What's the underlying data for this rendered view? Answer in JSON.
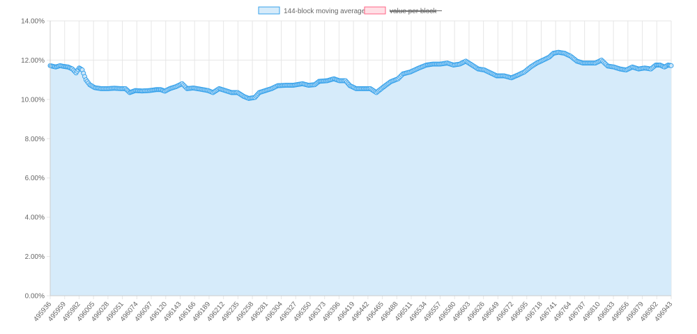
{
  "chart_data": {
    "type": "area",
    "legend": {
      "placement": "top-center",
      "items": [
        {
          "label": "144-block moving average",
          "fill": "#d6ebfa",
          "stroke": "#36a2eb",
          "hidden": false
        },
        {
          "label": "value per block",
          "fill": "#ffe0e6",
          "stroke": "#ff6384",
          "hidden": true
        }
      ]
    },
    "y_axis": {
      "min": 0,
      "max": 14,
      "step": 2,
      "tick_labels": [
        "0.00%",
        "2.00%",
        "4.00%",
        "6.00%",
        "8.00%",
        "10.00%",
        "12.00%",
        "14.00%"
      ]
    },
    "x_axis": {
      "min": 495936,
      "max": 496943,
      "tick_labels": [
        "495936",
        "495959",
        "495982",
        "496005",
        "496028",
        "496051",
        "496074",
        "496097",
        "496120",
        "496143",
        "496166",
        "496189",
        "496212",
        "496235",
        "496258",
        "496281",
        "496304",
        "496327",
        "496350",
        "496373",
        "496396",
        "496419",
        "496442",
        "496465",
        "496488",
        "496511",
        "496534",
        "496557",
        "496580",
        "496603",
        "496626",
        "496649",
        "496672",
        "496695",
        "496718",
        "496741",
        "496764",
        "496787",
        "496810",
        "496833",
        "496856",
        "496879",
        "496902",
        "496943"
      ]
    },
    "grid": true,
    "series": [
      {
        "name": "144-block moving average",
        "color": "#36a2eb",
        "fill": "#d6ebfa",
        "points": [
          [
            495936,
            11.72
          ],
          [
            495945,
            11.65
          ],
          [
            495952,
            11.72
          ],
          [
            495958,
            11.68
          ],
          [
            495965,
            11.65
          ],
          [
            495972,
            11.55
          ],
          [
            495978,
            11.35
          ],
          [
            495983,
            11.6
          ],
          [
            495988,
            11.5
          ],
          [
            495994,
            11.0
          ],
          [
            496000,
            10.75
          ],
          [
            496008,
            10.6
          ],
          [
            496018,
            10.55
          ],
          [
            496030,
            10.55
          ],
          [
            496040,
            10.57
          ],
          [
            496050,
            10.55
          ],
          [
            496058,
            10.55
          ],
          [
            496065,
            10.35
          ],
          [
            496074,
            10.45
          ],
          [
            496085,
            10.43
          ],
          [
            496097,
            10.45
          ],
          [
            496108,
            10.5
          ],
          [
            496115,
            10.5
          ],
          [
            496122,
            10.42
          ],
          [
            496130,
            10.55
          ],
          [
            496140,
            10.65
          ],
          [
            496150,
            10.8
          ],
          [
            496158,
            10.55
          ],
          [
            496168,
            10.58
          ],
          [
            496180,
            10.52
          ],
          [
            496192,
            10.45
          ],
          [
            496200,
            10.35
          ],
          [
            496210,
            10.55
          ],
          [
            496220,
            10.45
          ],
          [
            496230,
            10.35
          ],
          [
            496240,
            10.35
          ],
          [
            496250,
            10.15
          ],
          [
            496258,
            10.05
          ],
          [
            496268,
            10.1
          ],
          [
            496275,
            10.35
          ],
          [
            496285,
            10.45
          ],
          [
            496295,
            10.55
          ],
          [
            496305,
            10.7
          ],
          [
            496318,
            10.72
          ],
          [
            496330,
            10.72
          ],
          [
            496345,
            10.8
          ],
          [
            496355,
            10.72
          ],
          [
            496365,
            10.75
          ],
          [
            496372,
            10.92
          ],
          [
            496385,
            10.95
          ],
          [
            496396,
            11.05
          ],
          [
            496405,
            10.95
          ],
          [
            496415,
            10.95
          ],
          [
            496422,
            10.7
          ],
          [
            496432,
            10.55
          ],
          [
            496442,
            10.55
          ],
          [
            496455,
            10.55
          ],
          [
            496465,
            10.35
          ],
          [
            496475,
            10.6
          ],
          [
            496488,
            10.9
          ],
          [
            496500,
            11.05
          ],
          [
            496508,
            11.3
          ],
          [
            496520,
            11.4
          ],
          [
            496534,
            11.6
          ],
          [
            496546,
            11.75
          ],
          [
            496557,
            11.8
          ],
          [
            496568,
            11.8
          ],
          [
            496580,
            11.85
          ],
          [
            496590,
            11.75
          ],
          [
            496600,
            11.8
          ],
          [
            496610,
            11.95
          ],
          [
            496620,
            11.75
          ],
          [
            496630,
            11.55
          ],
          [
            496640,
            11.5
          ],
          [
            496650,
            11.35
          ],
          [
            496660,
            11.2
          ],
          [
            496672,
            11.2
          ],
          [
            496684,
            11.1
          ],
          [
            496695,
            11.25
          ],
          [
            496705,
            11.4
          ],
          [
            496715,
            11.65
          ],
          [
            496725,
            11.85
          ],
          [
            496735,
            12.0
          ],
          [
            496745,
            12.15
          ],
          [
            496752,
            12.35
          ],
          [
            496760,
            12.4
          ],
          [
            496770,
            12.35
          ],
          [
            496780,
            12.2
          ],
          [
            496790,
            11.95
          ],
          [
            496800,
            11.85
          ],
          [
            496810,
            11.85
          ],
          [
            496820,
            11.85
          ],
          [
            496830,
            12.0
          ],
          [
            496840,
            11.7
          ],
          [
            496850,
            11.65
          ],
          [
            496860,
            11.55
          ],
          [
            496870,
            11.5
          ],
          [
            496880,
            11.65
          ],
          [
            496890,
            11.55
          ],
          [
            496900,
            11.6
          ],
          [
            496910,
            11.55
          ],
          [
            496918,
            11.75
          ],
          [
            496925,
            11.75
          ],
          [
            496932,
            11.65
          ],
          [
            496938,
            11.75
          ],
          [
            496943,
            11.72
          ]
        ]
      }
    ]
  }
}
